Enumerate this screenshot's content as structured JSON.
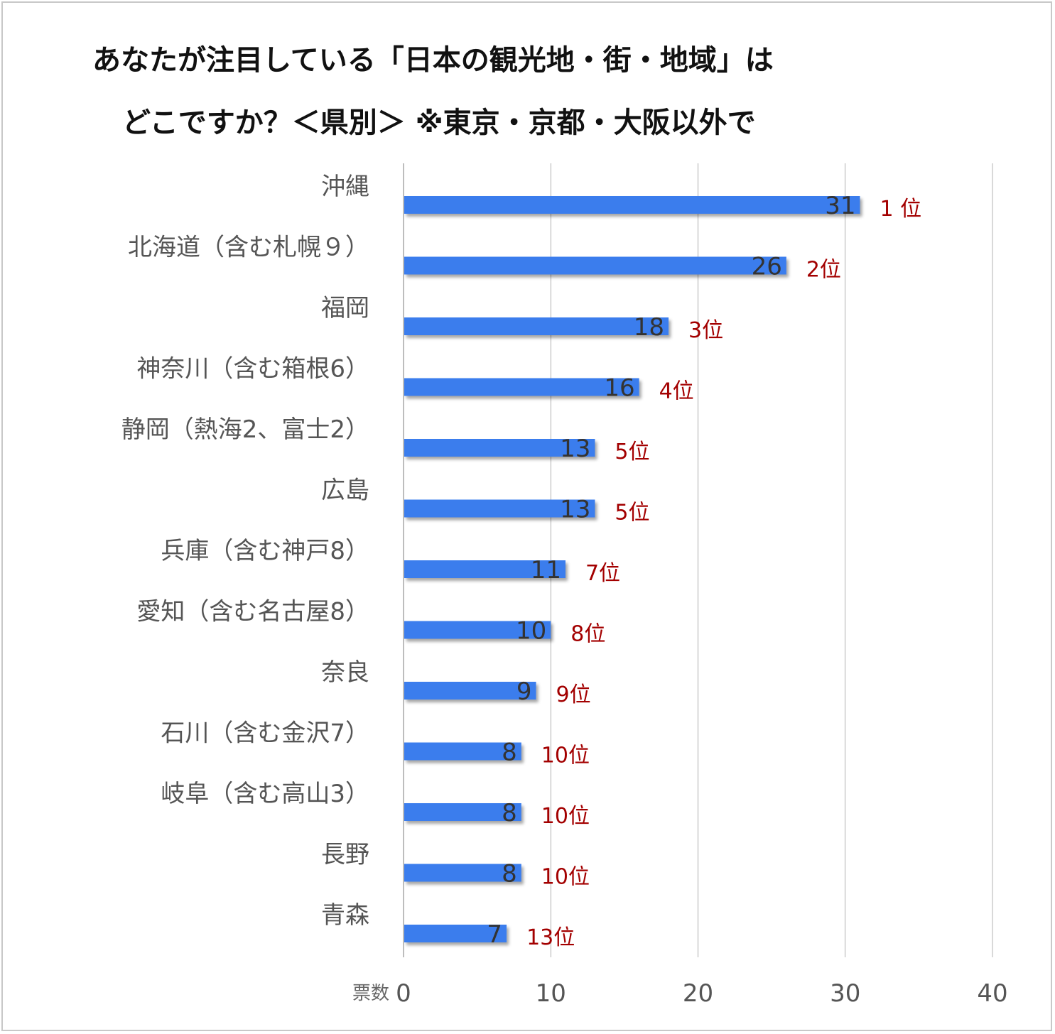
{
  "chart_data": {
    "type": "bar",
    "orientation": "horizontal",
    "title_lines": [
      "あなたが注目している「日本の観光地・街・地域」は",
      "どこですか？＜県別＞ ※東京・京都・大阪以外で"
    ],
    "categories": [
      "沖縄",
      "北海道（含む札幌９）",
      "福岡",
      "神奈川（含む箱根6）",
      "静岡（熱海2、富士2）",
      "広島",
      "兵庫（含む神戸8）",
      "愛知（含む名古屋8）",
      "奈良",
      "石川（含む金沢7）",
      "岐阜（含む高山3）",
      "長野",
      "青森"
    ],
    "values": [
      31,
      26,
      18,
      16,
      13,
      13,
      11,
      10,
      9,
      8,
      8,
      8,
      7
    ],
    "ranks": [
      "1 位",
      "2位",
      "3位",
      "4位",
      "5位",
      "5位",
      "7位",
      "8位",
      "9位",
      "10位",
      "10位",
      "10位",
      "13位"
    ],
    "xlabel": "票数",
    "xlim": [
      0,
      40
    ],
    "xticks": [
      "0",
      "10",
      "20",
      "30",
      "40"
    ],
    "grid": true,
    "bar_color": "#3b7ded",
    "rank_color": "#a30000"
  }
}
